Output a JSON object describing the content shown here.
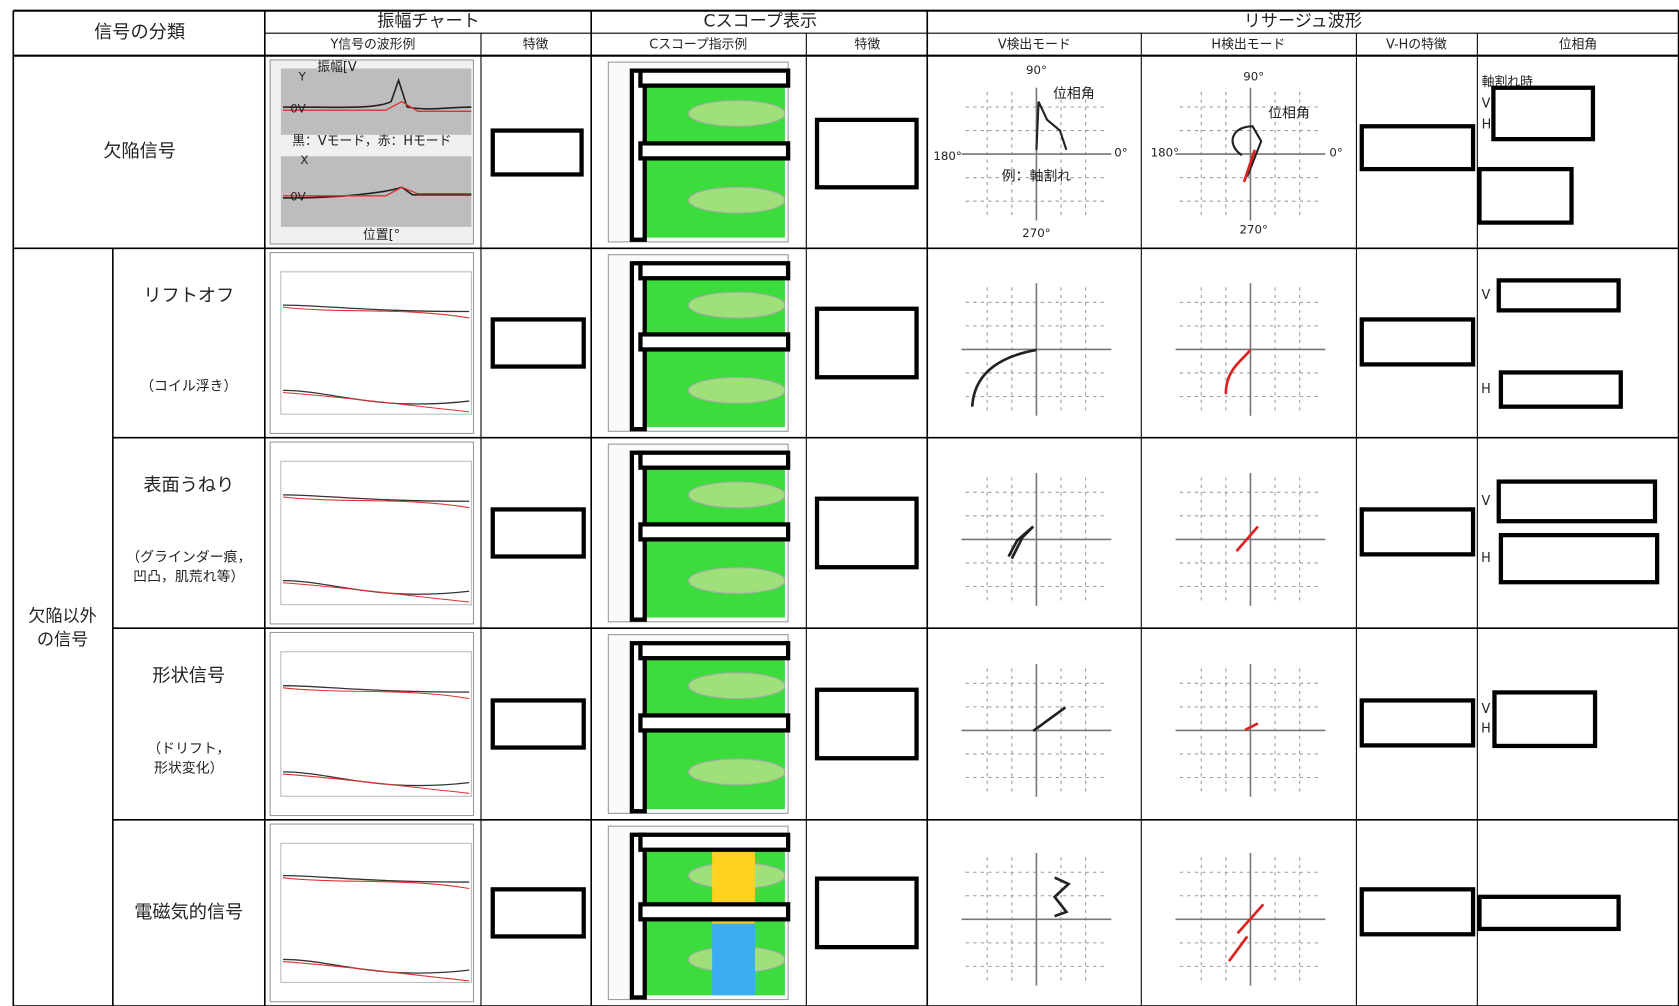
{
  "header": {
    "classification": "信号の分類",
    "groups": [
      "振幅チャート",
      "Cスコープ表示",
      "リサージュ波形"
    ],
    "columns": [
      "Y信号の波形例",
      "特徴",
      "Cスコープ指示例",
      "特徴",
      "V検出モード",
      "H検出モード",
      "V-Hの特徴",
      "位相角"
    ]
  },
  "defect_row": {
    "label": "欠陥信号",
    "amplitude_chart": {
      "y_axis": "振幅[V",
      "y_label": "Y",
      "zero_top": "0V",
      "legend": "黒：Vモード，赤：Hモード",
      "x_label": "X",
      "zero_bottom": "0V",
      "x_axis": "位置[°"
    },
    "v_mode": {
      "top": "90°",
      "callout": "位相角",
      "left": "180°",
      "right": "0°",
      "example": "例：軸割れ",
      "bottom": "270°"
    },
    "h_mode": {
      "top": "90°",
      "callout": "位相角",
      "left": "180°",
      "right": "0°",
      "bottom": "270°"
    },
    "phase": {
      "note": "軸割れ時",
      "v": "V",
      "h": "H"
    }
  },
  "non_defect": {
    "label": [
      "欠陥以外",
      "の信号"
    ],
    "rows": [
      {
        "name": "リフトオフ",
        "note": [
          "（コイル浮き）"
        ],
        "phase_labels": [
          "V",
          "H"
        ]
      },
      {
        "name": "表面うねり",
        "note": [
          "（グラインダー痕，",
          "凹凸，肌荒れ等）"
        ],
        "phase_labels": [
          "V",
          "H"
        ]
      },
      {
        "name": "形状信号",
        "note": [
          "（ドリフト，",
          "形状変化）"
        ],
        "phase_labels": [
          "V",
          "H"
        ]
      },
      {
        "name": "電磁気的信号"
      }
    ]
  }
}
